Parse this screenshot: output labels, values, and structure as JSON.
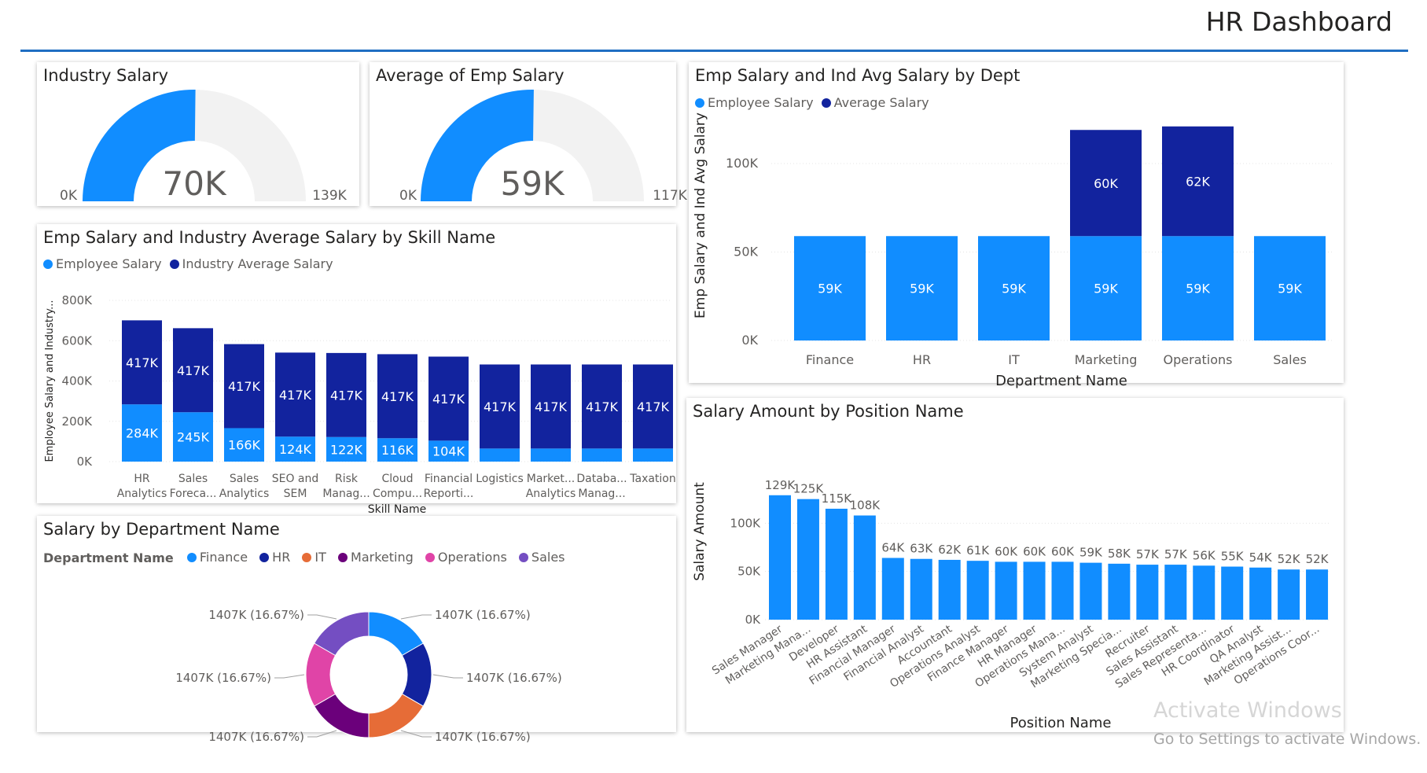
{
  "page": {
    "title": "HR Dashboard"
  },
  "watermark": {
    "line1": "Activate Windows",
    "line2": "Go to Settings to activate Windows."
  },
  "colors": {
    "primary": "#118dff",
    "secondary": "#12239e",
    "track": "#f2f2f2",
    "rule": "#1f6ec2"
  },
  "gauge_industry": {
    "title": "Industry Salary",
    "value_label": "70K",
    "min_label": "0K",
    "max_label": "139K",
    "fraction": 0.5036
  },
  "gauge_average": {
    "title": "Average of Emp Salary",
    "value_label": "59K",
    "min_label": "0K",
    "max_label": "117K",
    "fraction": 0.5043
  },
  "skill_chart": {
    "title": "Emp Salary and Industry Average Salary by Skill Name",
    "legend": [
      "Employee Salary",
      "Industry Average Salary"
    ],
    "ylabel": "Employee Salary and Industry...",
    "xlabel": "Skill Name"
  },
  "dept_chart": {
    "title": "Emp Salary and Ind Avg Salary by Dept",
    "legend": [
      "Employee Salary",
      "Average Salary"
    ],
    "ylabel": "Emp Salary and Ind Avg Salary",
    "xlabel": "Department Name"
  },
  "donut_chart": {
    "title": "Salary by Department Name",
    "legend_title": "Department Name",
    "legend": [
      "Finance",
      "HR",
      "IT",
      "Marketing",
      "Operations",
      "Sales"
    ]
  },
  "position_chart": {
    "title": "Salary Amount by Position Name",
    "ylabel": "Salary Amount",
    "xlabel": "Position Name"
  },
  "chart_data": [
    {
      "type": "bar",
      "stacked": true,
      "categories": [
        [
          "HR",
          "Analytics"
        ],
        [
          "Sales",
          "Foreca..."
        ],
        [
          "Sales",
          "Analytics"
        ],
        [
          "SEO and",
          "SEM"
        ],
        [
          "Risk",
          "Manag..."
        ],
        [
          "Cloud",
          "Compu..."
        ],
        [
          "Financial",
          "Reporti..."
        ],
        [
          "Logistics",
          ""
        ],
        [
          "Market...",
          "Analytics"
        ],
        [
          "Databa...",
          "Manag..."
        ],
        [
          "Taxation",
          ""
        ]
      ],
      "series": [
        {
          "name": "Employee Salary",
          "color": "#118dff",
          "values": [
            284,
            245,
            166,
            124,
            122,
            116,
            104,
            65,
            65,
            65,
            65
          ],
          "labels": [
            "284K",
            "245K",
            "166K",
            "124K",
            "122K",
            "116K",
            "104K",
            "",
            "",
            "",
            ""
          ]
        },
        {
          "name": "Industry Average Salary",
          "color": "#12239e",
          "values": [
            417,
            417,
            417,
            417,
            417,
            417,
            417,
            417,
            417,
            417,
            417
          ],
          "labels": [
            "417K",
            "417K",
            "417K",
            "417K",
            "417K",
            "417K",
            "417K",
            "417K",
            "417K",
            "417K",
            "417K"
          ]
        }
      ],
      "ylim": [
        0,
        800
      ],
      "yticks": [
        "0K",
        "200K",
        "400K",
        "600K",
        "800K"
      ],
      "grid": true,
      "legend_position": "top-left"
    },
    {
      "type": "bar",
      "stacked": true,
      "categories": [
        "Finance",
        "HR",
        "IT",
        "Marketing",
        "Operations",
        "Sales"
      ],
      "series": [
        {
          "name": "Employee Salary",
          "color": "#118dff",
          "values": [
            59,
            59,
            59,
            59,
            59,
            59
          ],
          "labels": [
            "59K",
            "59K",
            "59K",
            "59K",
            "59K",
            "59K"
          ]
        },
        {
          "name": "Average Salary",
          "color": "#12239e",
          "values": [
            0,
            0,
            0,
            60,
            62,
            0
          ],
          "labels": [
            "",
            "",
            "",
            "60K",
            "62K",
            ""
          ]
        }
      ],
      "ylim": [
        0,
        120
      ],
      "yticks": [
        "0K",
        "50K",
        "100K"
      ],
      "grid": true,
      "legend_position": "top-left"
    },
    {
      "type": "pie",
      "donut": true,
      "categories": [
        "Finance",
        "HR",
        "IT",
        "Marketing",
        "Operations",
        "Sales"
      ],
      "values": [
        1407,
        1407,
        1407,
        1407,
        1407,
        1407
      ],
      "labels": [
        "1407K (16.67%)",
        "1407K (16.67%)",
        "1407K (16.67%)",
        "1407K (16.67%)",
        "1407K (16.67%)",
        "1407K (16.67%)"
      ],
      "colors": [
        "#118dff",
        "#12239e",
        "#e66c37",
        "#6b007b",
        "#e044a7",
        "#744ec2"
      ],
      "legend_position": "top-left"
    },
    {
      "type": "bar",
      "categories": [
        "Sales Manager",
        "Marketing Mana...",
        "Developer",
        "HR Assistant",
        "Financial Manager",
        "Financial Analyst",
        "Accountant",
        "Operations Analyst",
        "Finance Manager",
        "HR Manager",
        "Operations Mana...",
        "System Analyst",
        "Marketing Specia...",
        "Recruiter",
        "Sales Assistant",
        "Sales Representa...",
        "HR Coordinator",
        "QA Analyst",
        "Marketing Assist...",
        "Operations Coor..."
      ],
      "values": [
        129,
        125,
        115,
        108,
        64,
        63,
        62,
        61,
        60,
        60,
        60,
        59,
        58,
        57,
        57,
        56,
        55,
        54,
        52,
        52
      ],
      "labels": [
        "129K",
        "125K",
        "115K",
        "108K",
        "64K",
        "63K",
        "62K",
        "61K",
        "60K",
        "60K",
        "60K",
        "59K",
        "58K",
        "57K",
        "57K",
        "56K",
        "55K",
        "54K",
        "52K",
        "52K"
      ],
      "color": "#118dff",
      "ylim": [
        0,
        135
      ],
      "yticks": [
        "0K",
        "50K",
        "100K"
      ],
      "grid": true
    }
  ]
}
